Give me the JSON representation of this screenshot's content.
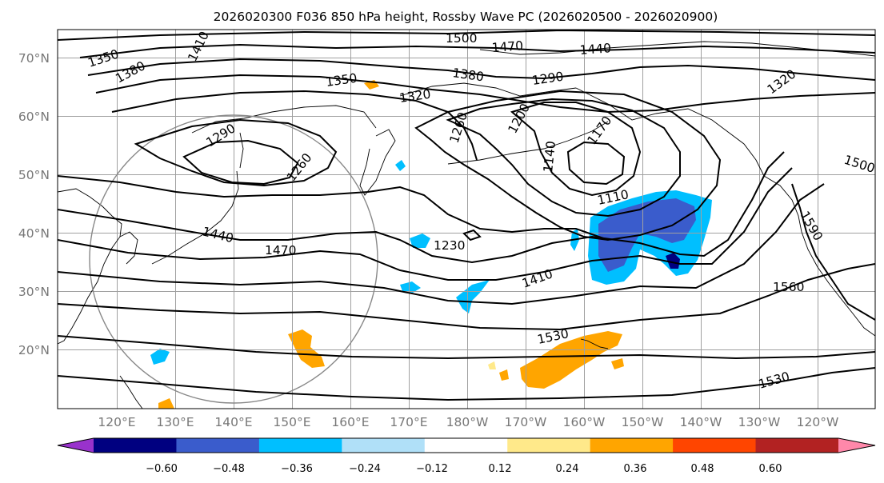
{
  "map": {
    "title": "2026020300 F036 850 hPa height, Rossby Wave PC (2026020500 - 2026020900)",
    "lat_labels": [
      "70°N",
      "60°N",
      "50°N",
      "40°N",
      "30°N",
      "20°N"
    ],
    "lon_labels": [
      "120°E",
      "130°E",
      "140°E",
      "150°E",
      "160°E",
      "170°E",
      "180°W",
      "170°W",
      "160°W",
      "150°W",
      "140°W",
      "130°W",
      "120°W"
    ],
    "contour_labels": [
      "1350",
      "1380",
      "1410",
      "1500",
      "1470",
      "1440",
      "1380",
      "1290",
      "1320",
      "1350",
      "1320",
      "1290",
      "1260",
      "1260",
      "1200",
      "1170",
      "1140",
      "1110",
      "1230",
      "1410",
      "1440",
      "1470",
      "1530",
      "1560",
      "1530",
      "1590",
      "1500"
    ],
    "colorbar": {
      "ticks": [
        "−0.60",
        "−0.48",
        "−0.36",
        "−0.24",
        "−0.12",
        "0.12",
        "0.24",
        "0.36",
        "0.48",
        "0.60"
      ],
      "colors": [
        "#9932cc",
        "#000080",
        "#3a5ccc",
        "#00bfff",
        "#b0e0f8",
        "#ffffff",
        "#ffe98a",
        "#ffa500",
        "#ff4500",
        "#b22222",
        "#ff88aa"
      ]
    },
    "colors": {
      "contour": "#000000",
      "grid": "#a0a0a0",
      "circle": "#888888",
      "coast": "#000000"
    }
  }
}
